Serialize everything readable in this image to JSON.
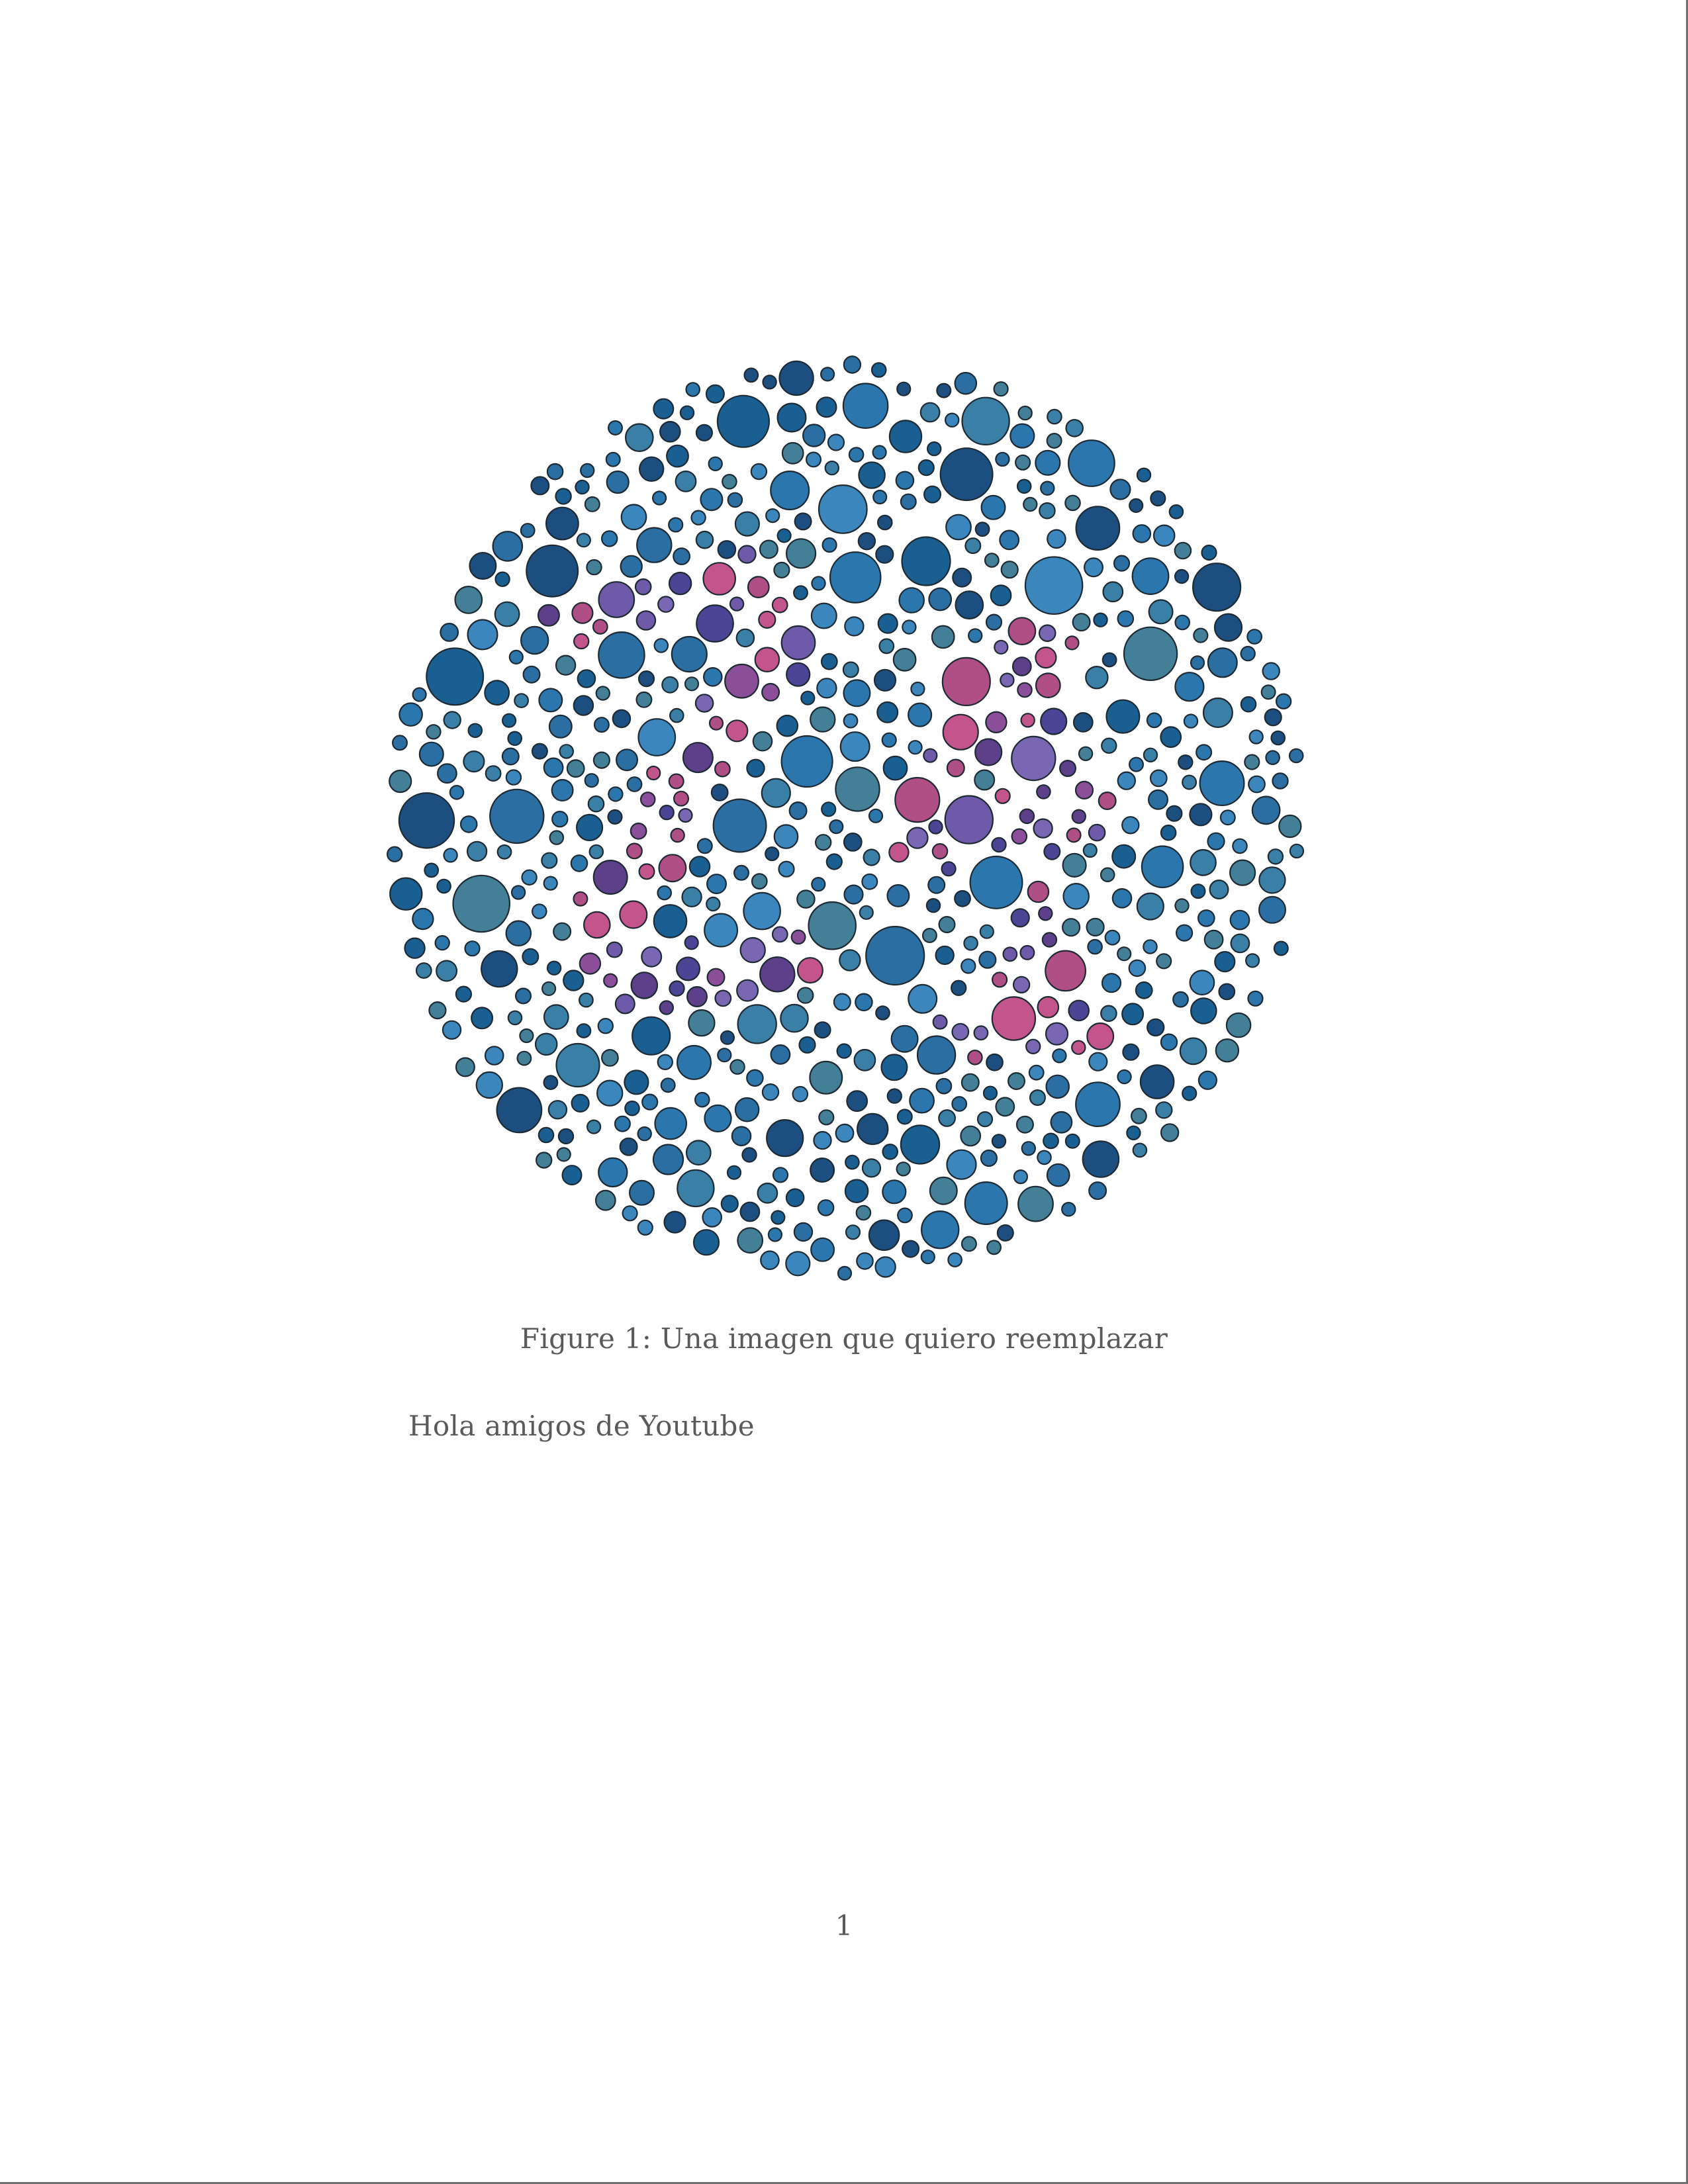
{
  "figure": {
    "caption": "Figure 1: Una imagen que quiero reemplazar",
    "image": {
      "kind": "color-dot-plate",
      "background_palette": [
        "#1a5f91",
        "#2b77ad",
        "#3b87bd",
        "#1c4f7f",
        "#2a6ea2",
        "#3a7fa6",
        "#447f98"
      ],
      "figure_palette": [
        "#c4558c",
        "#b04e86",
        "#8a4f98",
        "#6e5aa8",
        "#4c4494",
        "#5d3f8a",
        "#7a67b4"
      ]
    }
  },
  "body": {
    "paragraph": "Hola amigos de Youtube"
  },
  "footer": {
    "page_number": "1"
  }
}
